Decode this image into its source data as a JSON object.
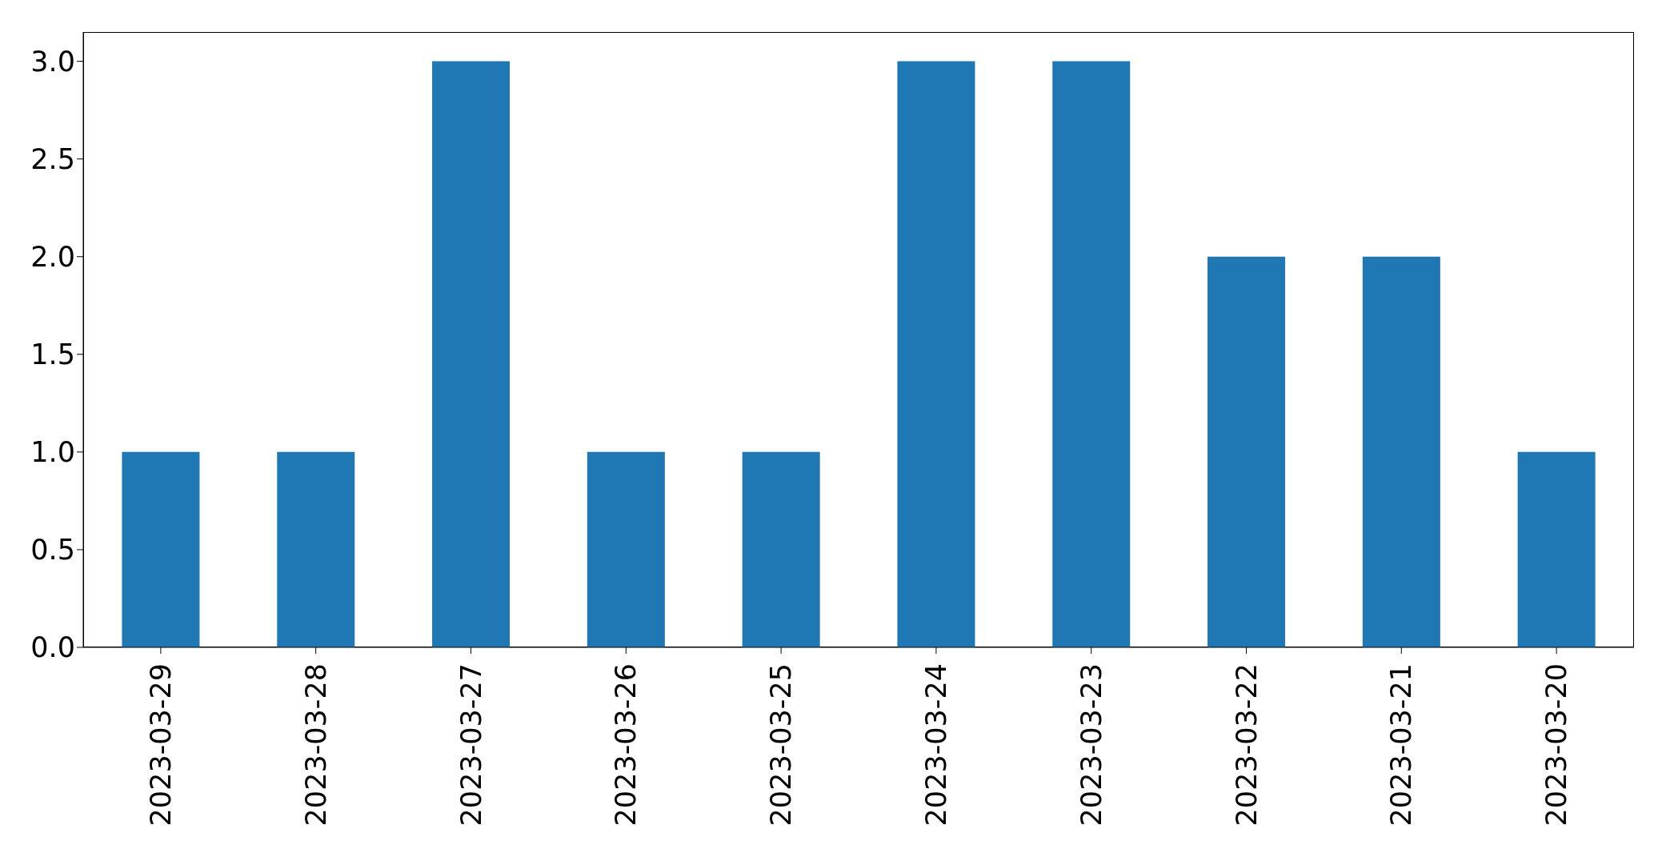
{
  "chart_data": {
    "type": "bar",
    "categories": [
      "2023-03-29",
      "2023-03-28",
      "2023-03-27",
      "2023-03-26",
      "2023-03-25",
      "2023-03-24",
      "2023-03-23",
      "2023-03-22",
      "2023-03-21",
      "2023-03-20"
    ],
    "values": [
      1,
      1,
      3,
      1,
      1,
      3,
      3,
      2,
      2,
      1
    ],
    "color": "#1f77b4",
    "ylim": [
      0,
      3.15
    ],
    "yticks": [
      {
        "value": 0,
        "label": "0.0"
      },
      {
        "value": 0.5,
        "label": "0.5"
      },
      {
        "value": 1,
        "label": "1.0"
      },
      {
        "value": 1.5,
        "label": "1.5"
      },
      {
        "value": 2,
        "label": "2.0"
      },
      {
        "value": 2.5,
        "label": "2.5"
      },
      {
        "value": 3,
        "label": "3.0"
      }
    ],
    "grid": false
  }
}
